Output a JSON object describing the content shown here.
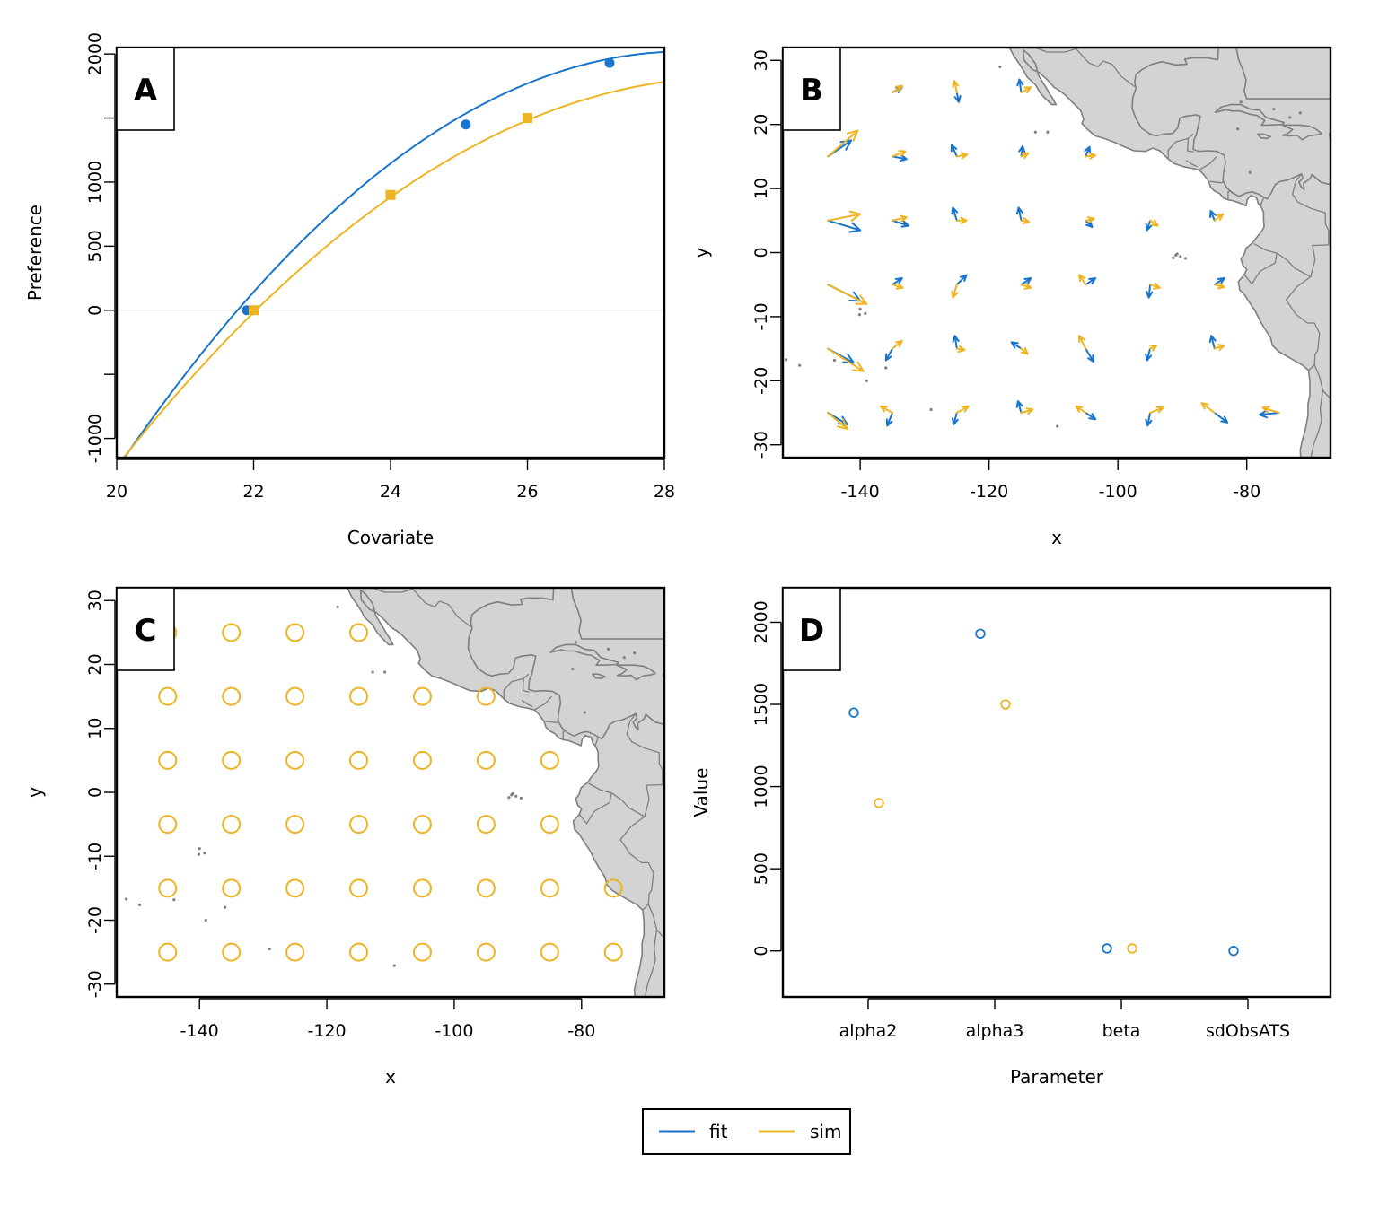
{
  "colors": {
    "fit": "#1874CD",
    "sim": "#EEB422",
    "land_fill": "#d3d3d3",
    "land_stroke": "#7f7f7f"
  },
  "legend": {
    "entries": [
      "fit",
      "sim"
    ],
    "placement": "bottom-center"
  },
  "chart_data": [
    {
      "panel": "A",
      "type": "line",
      "xlabel": "Covariate",
      "ylabel": "Preference",
      "xlim": [
        20,
        28
      ],
      "ylim": [
        -1150,
        2050
      ],
      "xticks": [
        20,
        22,
        24,
        26,
        28
      ],
      "yticks": [
        -1000,
        -500,
        0,
        500,
        1000,
        1500,
        2000
      ],
      "ytick_labels": [
        "-1000",
        "",
        "0",
        "500",
        "1000",
        "",
        "2000"
      ],
      "series": [
        {
          "name": "fit",
          "quadratic": {
            "peak_x": 28.3,
            "peak_y": 2020,
            "a": 47.3
          },
          "points": [
            [
              21.9,
              0
            ],
            [
              25.1,
              1450
            ],
            [
              27.2,
              1930
            ]
          ],
          "marker": "circle"
        },
        {
          "name": "sim",
          "quadratic": {
            "peak_x": 29,
            "peak_y": 1820,
            "a": 37.5
          },
          "points": [
            [
              22,
              0
            ],
            [
              24,
              900
            ],
            [
              26,
              1500
            ]
          ],
          "marker": "square"
        }
      ]
    },
    {
      "panel": "B",
      "type": "quiver",
      "xlabel": "x",
      "ylabel": "y",
      "xlim": [
        -152,
        -67
      ],
      "ylim": [
        -32,
        32
      ],
      "xticks": [
        -140,
        -120,
        -100,
        -80
      ],
      "yticks": [
        -30,
        -20,
        -10,
        0,
        10,
        20,
        30
      ],
      "arrows": [
        {
          "x": -145,
          "y": 25,
          "fit": [
            0,
            0
          ],
          "sim": [
            0.2,
            2.5
          ]
        },
        {
          "x": -135,
          "y": 25,
          "fit": [
            1.5,
            0.8
          ],
          "sim": [
            1.5,
            1
          ]
        },
        {
          "x": -125,
          "y": 25,
          "fit": [
            0.3,
            -1.5
          ],
          "sim": [
            -0.4,
            1.8
          ]
        },
        {
          "x": -115,
          "y": 25,
          "fit": [
            -0.3,
            2
          ],
          "sim": [
            1.5,
            0.8
          ]
        },
        {
          "x": -145,
          "y": 15,
          "fit": [
            3.6,
            2.5
          ],
          "sim": [
            4.6,
            4
          ]
        },
        {
          "x": -135,
          "y": 15,
          "fit": [
            2.2,
            -0.4
          ],
          "sim": [
            2,
            0.8
          ]
        },
        {
          "x": -125,
          "y": 15,
          "fit": [
            -0.8,
            1.8
          ],
          "sim": [
            1.6,
            0.3
          ]
        },
        {
          "x": -115,
          "y": 15,
          "fit": [
            0.2,
            1.6
          ],
          "sim": [
            1.1,
            0.5
          ]
        },
        {
          "x": -105,
          "y": 15,
          "fit": [
            0.6,
            1.5
          ],
          "sim": [
            1.5,
            0.2
          ]
        },
        {
          "x": -145,
          "y": 5,
          "fit": [
            5,
            -1.5
          ],
          "sim": [
            5,
            1
          ]
        },
        {
          "x": -135,
          "y": 5,
          "fit": [
            2.5,
            -0.8
          ],
          "sim": [
            2.2,
            0.5
          ]
        },
        {
          "x": -125,
          "y": 5,
          "fit": [
            -0.6,
            2
          ],
          "sim": [
            1.5,
            0
          ]
        },
        {
          "x": -115,
          "y": 5,
          "fit": [
            -0.4,
            2
          ],
          "sim": [
            1.2,
            -0.2
          ]
        },
        {
          "x": -105,
          "y": 5,
          "fit": [
            1,
            -1
          ],
          "sim": [
            1.3,
            0.3
          ]
        },
        {
          "x": -95,
          "y": 5,
          "fit": [
            -0.5,
            -1.5
          ],
          "sim": [
            1.2,
            -0.8
          ]
        },
        {
          "x": -85,
          "y": 5,
          "fit": [
            -0.6,
            1.5
          ],
          "sim": [
            1.3,
            1
          ]
        },
        {
          "x": -145,
          "y": -5,
          "fit": [
            5,
            -2.5
          ],
          "sim": [
            6,
            -3
          ]
        },
        {
          "x": -135,
          "y": -5,
          "fit": [
            1.5,
            1
          ],
          "sim": [
            1.6,
            -0.5
          ]
        },
        {
          "x": -125,
          "y": -5,
          "fit": [
            1.5,
            1.5
          ],
          "sim": [
            -0.6,
            -2
          ]
        },
        {
          "x": -115,
          "y": -5,
          "fit": [
            1.5,
            1
          ],
          "sim": [
            1.5,
            -0.5
          ]
        },
        {
          "x": -105,
          "y": -5,
          "fit": [
            1.5,
            1
          ],
          "sim": [
            -1,
            1.5
          ]
        },
        {
          "x": -95,
          "y": -5,
          "fit": [
            -0.2,
            -2
          ],
          "sim": [
            1.5,
            -0.5
          ]
        },
        {
          "x": -85,
          "y": -5,
          "fit": [
            1.5,
            1
          ],
          "sim": [
            1.5,
            -0.4
          ]
        },
        {
          "x": -145,
          "y": -15,
          "fit": [
            4,
            -2.2
          ],
          "sim": [
            5.5,
            -3.5
          ]
        },
        {
          "x": -135,
          "y": -15,
          "fit": [
            -1,
            -1.8
          ],
          "sim": [
            1.5,
            1.2
          ]
        },
        {
          "x": -125,
          "y": -15,
          "fit": [
            -0.3,
            2
          ],
          "sim": [
            1.2,
            -0.2
          ]
        },
        {
          "x": -115,
          "y": -15,
          "fit": [
            -1.5,
            1
          ],
          "sim": [
            1,
            -0.8
          ]
        },
        {
          "x": -105,
          "y": -15,
          "fit": [
            1.2,
            -2
          ],
          "sim": [
            -1,
            2
          ]
        },
        {
          "x": -95,
          "y": -15,
          "fit": [
            -0.5,
            -1.8
          ],
          "sim": [
            1,
            0.5
          ]
        },
        {
          "x": -85,
          "y": -15,
          "fit": [
            -0.5,
            2
          ],
          "sim": [
            1.5,
            0.5
          ]
        },
        {
          "x": -145,
          "y": -25,
          "fit": [
            3,
            -1.8
          ],
          "sim": [
            3,
            -2.5
          ]
        },
        {
          "x": -135,
          "y": -25,
          "fit": [
            -0.8,
            -2
          ],
          "sim": [
            -1.8,
            1
          ]
        },
        {
          "x": -125,
          "y": -25,
          "fit": [
            -0.5,
            -1.8
          ],
          "sim": [
            1.8,
            1
          ]
        },
        {
          "x": -115,
          "y": -25,
          "fit": [
            -0.5,
            1.8
          ],
          "sim": [
            1.8,
            0.5
          ]
        },
        {
          "x": -105,
          "y": -25,
          "fit": [
            1.5,
            -1
          ],
          "sim": [
            -1.5,
            1
          ]
        },
        {
          "x": -95,
          "y": -25,
          "fit": [
            -0.4,
            -2
          ],
          "sim": [
            2,
            0.8
          ]
        },
        {
          "x": -85,
          "y": -25,
          "fit": [
            2,
            -1.5
          ],
          "sim": [
            -2,
            1.5
          ]
        },
        {
          "x": -75,
          "y": -25,
          "fit": [
            -3,
            -0.3
          ],
          "sim": [
            -2.5,
            0.8
          ]
        }
      ]
    },
    {
      "panel": "C",
      "type": "scatter",
      "xlabel": "x",
      "ylabel": "y",
      "xlim": [
        -153,
        -67
      ],
      "ylim": [
        -32,
        32
      ],
      "xticks": [
        -140,
        -120,
        -100,
        -80
      ],
      "yticks": [
        -30,
        -20,
        -10,
        0,
        10,
        20,
        30
      ],
      "points": [
        [
          -145,
          25
        ],
        [
          -135,
          25
        ],
        [
          -125,
          25
        ],
        [
          -115,
          25
        ],
        [
          -145,
          15
        ],
        [
          -135,
          15
        ],
        [
          -125,
          15
        ],
        [
          -115,
          15
        ],
        [
          -105,
          15
        ],
        [
          -95,
          15
        ],
        [
          -145,
          5
        ],
        [
          -135,
          5
        ],
        [
          -125,
          5
        ],
        [
          -115,
          5
        ],
        [
          -105,
          5
        ],
        [
          -95,
          5
        ],
        [
          -85,
          5
        ],
        [
          -145,
          -5
        ],
        [
          -135,
          -5
        ],
        [
          -125,
          -5
        ],
        [
          -115,
          -5
        ],
        [
          -105,
          -5
        ],
        [
          -95,
          -5
        ],
        [
          -85,
          -5
        ],
        [
          -145,
          -15
        ],
        [
          -135,
          -15
        ],
        [
          -125,
          -15
        ],
        [
          -115,
          -15
        ],
        [
          -105,
          -15
        ],
        [
          -95,
          -15
        ],
        [
          -85,
          -15
        ],
        [
          -75,
          -15
        ],
        [
          -145,
          -25
        ],
        [
          -135,
          -25
        ],
        [
          -125,
          -25
        ],
        [
          -115,
          -25
        ],
        [
          -105,
          -25
        ],
        [
          -95,
          -25
        ],
        [
          -85,
          -25
        ],
        [
          -75,
          -25
        ]
      ]
    },
    {
      "panel": "D",
      "type": "scatter",
      "xlabel": "Parameter",
      "ylabel": "Value",
      "categories": [
        "alpha2",
        "alpha3",
        "beta",
        "sdObsATS"
      ],
      "ylim": [
        -280,
        2210
      ],
      "yticks": [
        0,
        500,
        1000,
        1500,
        2000
      ],
      "series": [
        {
          "name": "fit",
          "values": [
            1450,
            1930,
            15,
            0
          ]
        },
        {
          "name": "sim",
          "values": [
            900,
            1500,
            15,
            null
          ]
        }
      ]
    }
  ]
}
